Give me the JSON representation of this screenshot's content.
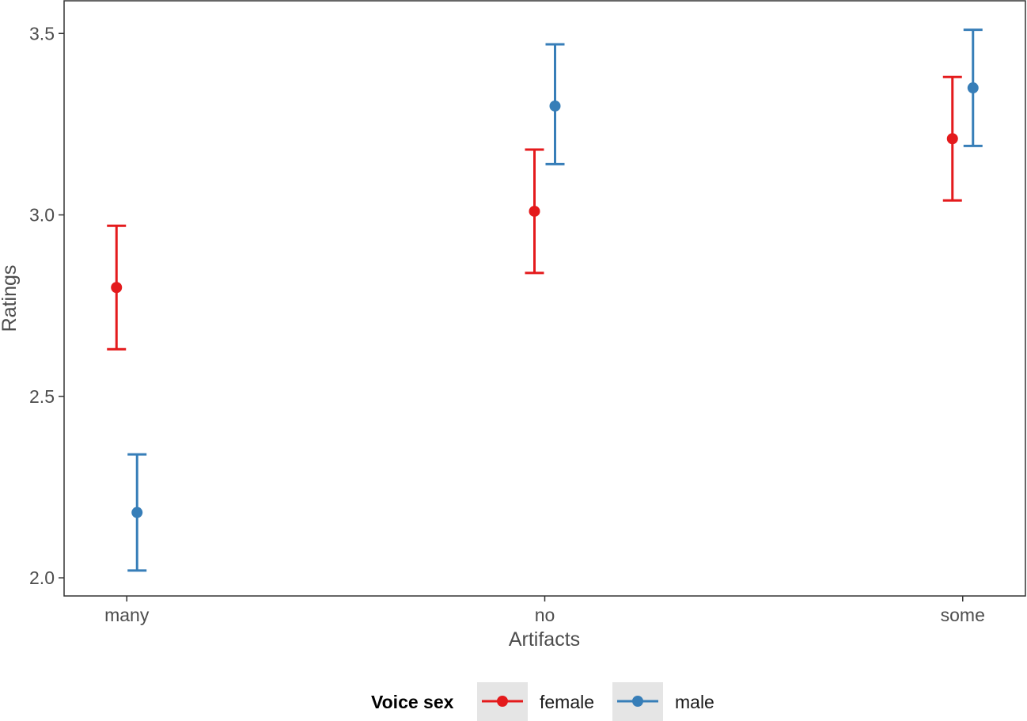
{
  "chart_data": {
    "type": "scatter",
    "subtype": "point-with-errorbars",
    "title": "",
    "xlabel": "Artifacts",
    "ylabel": "Ratings",
    "categories": [
      "many",
      "no",
      "some"
    ],
    "yticks": [
      "2.0",
      "2.5",
      "3.0",
      "3.5"
    ],
    "ylim": [
      1.95,
      3.59
    ],
    "grid": false,
    "legend": {
      "title": "Voice sex",
      "position": "bottom"
    },
    "series": [
      {
        "name": "female",
        "color": "#e41a1c",
        "points": [
          {
            "x": "many",
            "y": 2.8,
            "low": 2.63,
            "high": 2.97
          },
          {
            "x": "no",
            "y": 3.01,
            "low": 2.84,
            "high": 3.18
          },
          {
            "x": "some",
            "y": 3.21,
            "low": 3.04,
            "high": 3.38
          }
        ]
      },
      {
        "name": "male",
        "color": "#377eb8",
        "points": [
          {
            "x": "many",
            "y": 2.18,
            "low": 2.02,
            "high": 2.34
          },
          {
            "x": "no",
            "y": 3.3,
            "low": 3.14,
            "high": 3.47
          },
          {
            "x": "some",
            "y": 3.35,
            "low": 3.19,
            "high": 3.51
          }
        ]
      }
    ]
  }
}
